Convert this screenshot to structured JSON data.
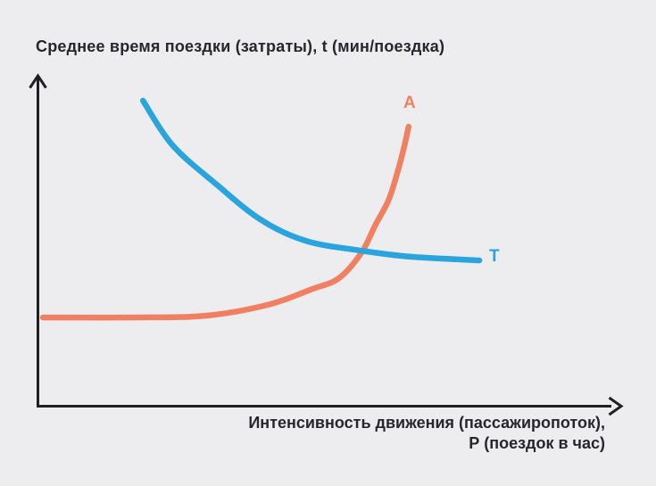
{
  "chart": {
    "title": "Среднее время поездки (затраты), t (мин/поездка)",
    "x_axis_label_lines": [
      "Интенсивность движения (пассажиропоток),",
      "Р (поездок в час)"
    ],
    "background": "#EDEDF0",
    "text_color": "#26262C",
    "axis_color": "#202024"
  },
  "chart_data": {
    "type": "line",
    "title": "Среднее время поездки (затраты), t (мин/поездка)",
    "ylabel": "Среднее время поездки (затраты), t (мин/поездка)",
    "xlabel": "Интенсивность движения (пассажиропоток), Р (поездок в час)",
    "axes_ticks": "none (qualitative schematic, no numeric tick labels shown)",
    "xlim": [
      0,
      100
    ],
    "ylim": [
      0,
      100
    ],
    "grid": false,
    "legend_position": "inline labels at curve ends",
    "series": [
      {
        "name": "A",
        "color": "#F08061",
        "description": "flat at low intensity, then rises steeply upward (nearly vertical at right end)",
        "points": [
          [
            0.85,
            26.9
          ],
          [
            16.5,
            26.9
          ],
          [
            28.8,
            27.4
          ],
          [
            39.6,
            30.7
          ],
          [
            47.3,
            35.5
          ],
          [
            51.9,
            38.8
          ],
          [
            55.8,
            46.6
          ],
          [
            58.1,
            54.7
          ],
          [
            60.4,
            62.3
          ],
          [
            61.9,
            70.4
          ],
          [
            63.0,
            77.7
          ],
          [
            63.9,
            84.7
          ]
        ]
      },
      {
        "name": "T",
        "color": "#29A4DD",
        "description": "starts high, falls steeply, then flattens toward an asymptote; drawn on top of curve A at their intersection",
        "points": [
          [
            18.1,
            92.6
          ],
          [
            23.2,
            79.1
          ],
          [
            30.8,
            67.2
          ],
          [
            38.5,
            56.4
          ],
          [
            46.2,
            50.1
          ],
          [
            55.5,
            47.2
          ],
          [
            64.2,
            45.3
          ],
          [
            76.1,
            44.2
          ]
        ]
      }
    ]
  }
}
